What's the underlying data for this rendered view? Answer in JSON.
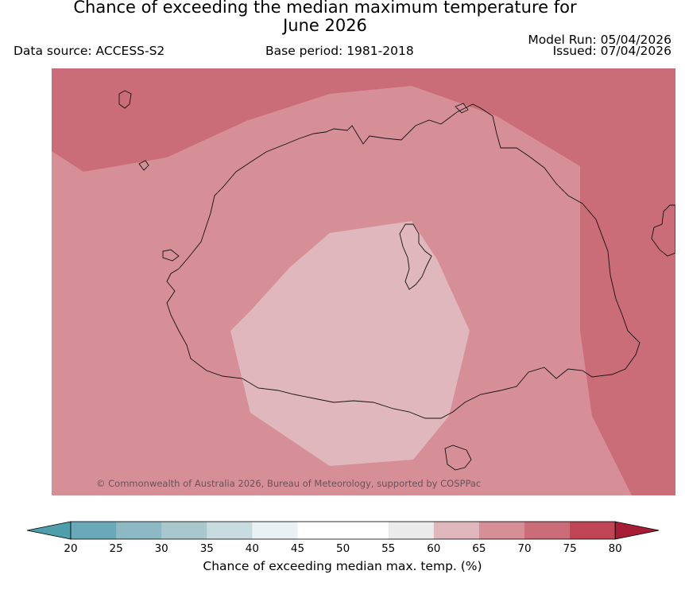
{
  "header": {
    "title_line1": "Chance of exceeding the median maximum temperature for",
    "title_line2": "June 2026",
    "data_source": "Data source: ACCESS-S2",
    "base_period": "Base period: 1981-2018",
    "model_run": "Model Run: 05/04/2026",
    "issued": "Issued: 07/04/2026"
  },
  "map": {
    "copyright": "© Commonwealth of Australia 2026, Bureau of Meteorology, supported by COSPPac",
    "region_fills": {
      "above_70": "#cb6d78",
      "65_70": "#d68f97",
      "60_65": "#e0b7bc"
    }
  },
  "colorbar": {
    "label": "Chance of exceeding median max. temp. (%)",
    "ticks": [
      "20",
      "25",
      "30",
      "35",
      "40",
      "45",
      "50",
      "55",
      "60",
      "65",
      "70",
      "75",
      "80"
    ],
    "colors": [
      "#69a9b8",
      "#8cb9c4",
      "#a9c8cd",
      "#c7dbe0",
      "#e9f1f4",
      "#ffffff",
      "#ffffff",
      "#ecebec",
      "#e0b7bc",
      "#d68f97",
      "#cb6d78",
      "#c04656"
    ],
    "under_color": "#4f9eac",
    "over_color": "#a81d36"
  }
}
